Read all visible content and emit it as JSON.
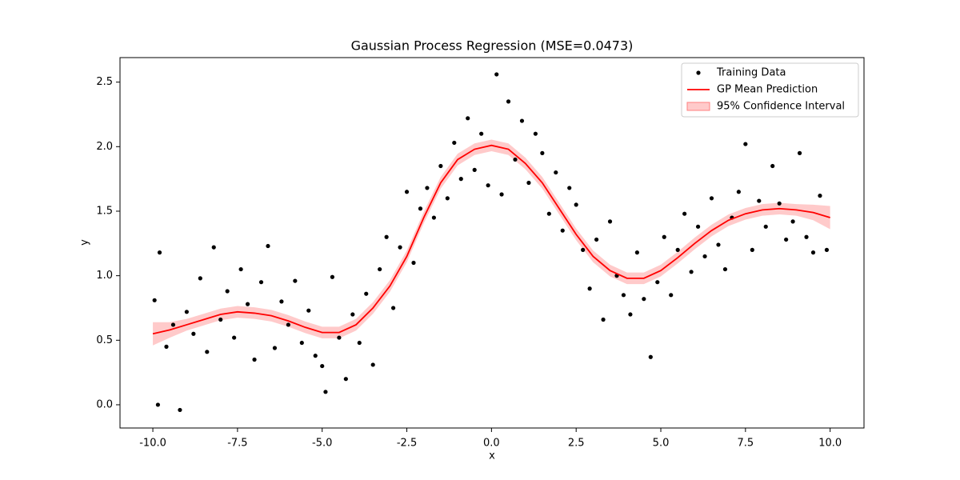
{
  "chart_data": {
    "type": "scatter",
    "title": "Gaussian Process Regression (MSE=0.0473)",
    "xlabel": "x",
    "ylabel": "y",
    "xlim": [
      -10.97,
      11.0
    ],
    "ylim": [
      -0.18,
      2.69
    ],
    "xticks": [
      {
        "value": -10,
        "label": "-10.0"
      },
      {
        "value": -7.5,
        "label": "-7.5"
      },
      {
        "value": -5,
        "label": "-5.0"
      },
      {
        "value": -2.5,
        "label": "-2.5"
      },
      {
        "value": 0,
        "label": "0.0"
      },
      {
        "value": 2.5,
        "label": "2.5"
      },
      {
        "value": 5,
        "label": "5.0"
      },
      {
        "value": 7.5,
        "label": "7.5"
      },
      {
        "value": 10,
        "label": "10.0"
      }
    ],
    "yticks": [
      {
        "value": 0,
        "label": "0.0"
      },
      {
        "value": 0.5,
        "label": "0.5"
      },
      {
        "value": 1,
        "label": "1.0"
      },
      {
        "value": 1.5,
        "label": "1.5"
      },
      {
        "value": 2,
        "label": "2.0"
      },
      {
        "value": 2.5,
        "label": "2.5"
      }
    ],
    "grid": false,
    "legend": "upper right",
    "series": [
      {
        "name": "Training Data",
        "type": "scatter",
        "color": "#000000",
        "x": [
          -9.95,
          -9.85,
          -9.8,
          -9.6,
          -9.4,
          -9.2,
          -9.0,
          -8.8,
          -8.6,
          -8.4,
          -8.2,
          -8.0,
          -7.8,
          -7.6,
          -7.4,
          -7.2,
          -7.0,
          -6.8,
          -6.6,
          -6.4,
          -6.2,
          -6.0,
          -5.8,
          -5.6,
          -5.4,
          -5.2,
          -5.0,
          -4.9,
          -4.7,
          -4.5,
          -4.3,
          -4.1,
          -3.9,
          -3.7,
          -3.5,
          -3.3,
          -3.1,
          -2.9,
          -2.7,
          -2.5,
          -2.3,
          -2.1,
          -1.9,
          -1.7,
          -1.5,
          -1.3,
          -1.1,
          -0.9,
          -0.7,
          -0.5,
          -0.3,
          -0.1,
          0.15,
          0.3,
          0.5,
          0.7,
          0.9,
          1.1,
          1.3,
          1.5,
          1.7,
          1.9,
          2.1,
          2.3,
          2.5,
          2.7,
          2.9,
          3.1,
          3.3,
          3.5,
          3.7,
          3.9,
          4.1,
          4.3,
          4.5,
          4.7,
          4.9,
          5.1,
          5.3,
          5.5,
          5.7,
          5.9,
          6.1,
          6.3,
          6.5,
          6.7,
          6.9,
          7.1,
          7.3,
          7.5,
          7.7,
          7.9,
          8.1,
          8.3,
          8.5,
          8.7,
          8.9,
          9.1,
          9.3,
          9.5,
          9.7,
          9.9
        ],
        "y": [
          0.81,
          0.0,
          1.18,
          0.45,
          0.62,
          -0.04,
          0.72,
          0.55,
          0.98,
          0.41,
          1.22,
          0.66,
          0.88,
          0.52,
          1.05,
          0.78,
          0.35,
          0.95,
          1.23,
          0.44,
          0.8,
          0.62,
          0.96,
          0.48,
          0.73,
          0.38,
          0.3,
          0.1,
          0.99,
          0.52,
          0.2,
          0.7,
          0.48,
          0.86,
          0.31,
          1.05,
          1.3,
          0.75,
          1.22,
          1.65,
          1.1,
          1.52,
          1.68,
          1.45,
          1.85,
          1.6,
          2.03,
          1.75,
          2.22,
          1.82,
          2.1,
          1.7,
          2.56,
          1.63,
          2.35,
          1.9,
          2.2,
          1.72,
          2.1,
          1.95,
          1.48,
          1.8,
          1.35,
          1.68,
          1.55,
          1.2,
          0.9,
          1.28,
          0.66,
          1.42,
          1.0,
          0.85,
          0.7,
          1.18,
          0.82,
          0.37,
          0.95,
          1.3,
          0.85,
          1.2,
          1.48,
          1.03,
          1.38,
          1.15,
          1.6,
          1.24,
          1.05,
          1.45,
          1.65,
          2.02,
          1.2,
          1.58,
          1.38,
          1.85,
          1.56,
          1.28,
          1.42,
          1.95,
          1.3,
          1.18,
          1.62,
          1.2
        ]
      },
      {
        "name": "GP Mean Prediction",
        "type": "line",
        "color": "#ff0000",
        "x": [
          -10,
          -9.5,
          -9,
          -8.5,
          -8,
          -7.5,
          -7,
          -6.5,
          -6,
          -5.5,
          -5,
          -4.5,
          -4,
          -3.5,
          -3,
          -2.5,
          -2,
          -1.5,
          -1,
          -0.5,
          0,
          0.5,
          1,
          1.5,
          2,
          2.5,
          3,
          3.5,
          4,
          4.5,
          5,
          5.5,
          6,
          6.5,
          7,
          7.5,
          8,
          8.5,
          9,
          9.5,
          10
        ],
        "values": [
          0.55,
          0.58,
          0.62,
          0.66,
          0.7,
          0.72,
          0.71,
          0.69,
          0.65,
          0.6,
          0.56,
          0.56,
          0.62,
          0.75,
          0.92,
          1.15,
          1.45,
          1.72,
          1.9,
          1.98,
          2.01,
          1.98,
          1.87,
          1.72,
          1.52,
          1.32,
          1.15,
          1.04,
          0.98,
          0.98,
          1.04,
          1.14,
          1.25,
          1.35,
          1.43,
          1.48,
          1.51,
          1.52,
          1.51,
          1.49,
          1.45
        ]
      },
      {
        "name": "95% Confidence Interval",
        "type": "band",
        "color": "#ffb3b3",
        "x": [
          -10,
          -9.5,
          -9,
          -8.5,
          -8,
          -7.5,
          -7,
          -6.5,
          -6,
          -5.5,
          -5,
          -4.5,
          -4,
          -3.5,
          -3,
          -2.5,
          -2,
          -1.5,
          -1,
          -0.5,
          0,
          0.5,
          1,
          1.5,
          2,
          2.5,
          3,
          3.5,
          4,
          4.5,
          5,
          5.5,
          6,
          6.5,
          7,
          7.5,
          8,
          8.5,
          9,
          9.5,
          10
        ],
        "lower": [
          0.46,
          0.52,
          0.575,
          0.615,
          0.655,
          0.675,
          0.665,
          0.645,
          0.605,
          0.555,
          0.515,
          0.515,
          0.575,
          0.705,
          0.875,
          1.105,
          1.405,
          1.675,
          1.855,
          1.935,
          1.965,
          1.935,
          1.825,
          1.675,
          1.475,
          1.275,
          1.105,
          0.995,
          0.935,
          0.935,
          0.995,
          1.095,
          1.205,
          1.305,
          1.385,
          1.435,
          1.465,
          1.475,
          1.465,
          1.43,
          1.36
        ],
        "upper": [
          0.64,
          0.64,
          0.665,
          0.705,
          0.745,
          0.765,
          0.755,
          0.735,
          0.695,
          0.645,
          0.605,
          0.605,
          0.665,
          0.795,
          0.965,
          1.195,
          1.495,
          1.765,
          1.945,
          2.025,
          2.055,
          2.025,
          1.915,
          1.765,
          1.565,
          1.365,
          1.195,
          1.085,
          1.025,
          1.025,
          1.085,
          1.185,
          1.295,
          1.395,
          1.475,
          1.525,
          1.555,
          1.565,
          1.555,
          1.55,
          1.54
        ]
      }
    ]
  }
}
